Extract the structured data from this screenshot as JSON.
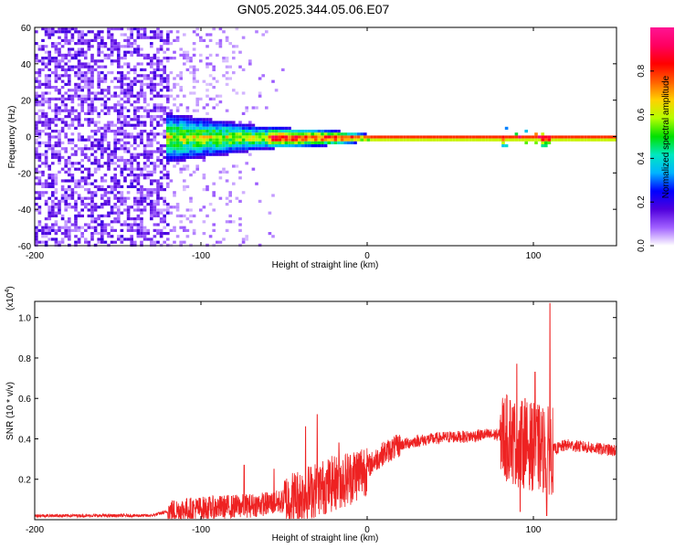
{
  "figure_title": "GN05.2025.344.05.06.E07",
  "colorbar": {
    "label": "Normalized spectral amplitude",
    "range": [
      0,
      1
    ],
    "ticks": [
      {
        "value": 0.0,
        "label": "0.0"
      },
      {
        "value": 0.2,
        "label": "0.2"
      },
      {
        "value": 0.4,
        "label": "0.4"
      },
      {
        "value": 0.6,
        "label": "0.6"
      },
      {
        "value": 0.8,
        "label": "0.8"
      }
    ],
    "colors": [
      "#ffffff",
      "#a060ff",
      "#5000dd",
      "#0000ff",
      "#00b4ff",
      "#00e8c0",
      "#00e000",
      "#b4ff00",
      "#ffd200",
      "#ff6000",
      "#ff0000",
      "#ff0060",
      "#ff1493"
    ]
  },
  "chart_data": [
    {
      "type": "heatmap",
      "xlabel": "Height of straight line (km)",
      "ylabel": "Frequency (Hz)",
      "xlim": [
        -200,
        150
      ],
      "ylim": [
        -60,
        60
      ],
      "xticks": [
        {
          "value": -200,
          "label": "-200"
        },
        {
          "value": -100,
          "label": "-100"
        },
        {
          "value": 0,
          "label": "0"
        },
        {
          "value": 100,
          "label": "100"
        }
      ],
      "yticks": [
        {
          "value": -60,
          "label": "-60"
        },
        {
          "value": -40,
          "label": "-40"
        },
        {
          "value": -20,
          "label": "-20"
        },
        {
          "value": 0,
          "label": "0"
        },
        {
          "value": 20,
          "label": "20"
        },
        {
          "value": 40,
          "label": "40"
        },
        {
          "value": 60,
          "label": "60"
        }
      ],
      "features": {
        "noise_region_x": [
          -200,
          -120
        ],
        "noise_amplitude": 0.15,
        "sparse_noise_region_x": [
          -120,
          -50
        ],
        "carrier_frequency_hz": 0,
        "carrier_start_x": -122,
        "carrier_broadening": [
          {
            "x": -122,
            "halfwidth_hz": 14
          },
          {
            "x": -100,
            "halfwidth_hz": 11
          },
          {
            "x": -60,
            "halfwidth_hz": 6
          },
          {
            "x": -20,
            "halfwidth_hz": 4
          },
          {
            "x": 0,
            "halfwidth_hz": 2
          },
          {
            "x": 150,
            "halfwidth_hz": 2
          }
        ],
        "bursts": [
          {
            "x_start": 80,
            "x_end": 110,
            "halfwidth_hz": 6
          }
        ]
      }
    },
    {
      "type": "line",
      "xlabel": "Height of straight line (km)",
      "ylabel": "SNR (10 * v/v)",
      "yscale_label_prefix": "(x10",
      "yscale_label_exp": "4",
      "yscale_label_suffix": ")",
      "xlim": [
        -200,
        150
      ],
      "ylim": [
        0,
        1.08
      ],
      "xticks": [
        {
          "value": -200,
          "label": "-200"
        },
        {
          "value": -100,
          "label": "-100"
        },
        {
          "value": 0,
          "label": "0"
        },
        {
          "value": 100,
          "label": "100"
        }
      ],
      "yticks": [
        {
          "value": 0.2,
          "label": "0.2"
        },
        {
          "value": 0.4,
          "label": "0.4"
        },
        {
          "value": 0.6,
          "label": "0.6"
        },
        {
          "value": 0.8,
          "label": "0.8"
        },
        {
          "value": 1.0,
          "label": "1.0"
        }
      ],
      "series": [
        {
          "name": "SNR",
          "color": "#ee2222",
          "baseline": {
            "x": [
              -200,
              -130,
              -120,
              -110,
              -90,
              -70,
              -50,
              -40,
              -30,
              -20,
              -10,
              0,
              10,
              20,
              30,
              40,
              50,
              60,
              70,
              80,
              90,
              100,
              110,
              120,
              130,
              140,
              150
            ],
            "y": [
              0.02,
              0.02,
              0.04,
              0.05,
              0.06,
              0.07,
              0.09,
              0.12,
              0.15,
              0.18,
              0.21,
              0.26,
              0.33,
              0.37,
              0.39,
              0.4,
              0.41,
              0.41,
              0.42,
              0.42,
              0.38,
              0.36,
              0.34,
              0.37,
              0.36,
              0.35,
              0.34
            ]
          },
          "notable_points": [
            {
              "x": -74,
              "y": 0.27
            },
            {
              "x": -56,
              "y": 0.25
            },
            {
              "x": -37,
              "y": 0.46
            },
            {
              "x": -30,
              "y": 0.52
            },
            {
              "x": -17,
              "y": 0.38
            },
            {
              "x": 86,
              "y": 0.59
            },
            {
              "x": 90,
              "y": 0.77
            },
            {
              "x": 95,
              "y": 0.6
            },
            {
              "x": 101,
              "y": 0.73
            },
            {
              "x": 110,
              "y": 1.07
            },
            {
              "x": 108,
              "y": 0.02
            },
            {
              "x": 92,
              "y": 0.04
            }
          ]
        }
      ]
    }
  ]
}
